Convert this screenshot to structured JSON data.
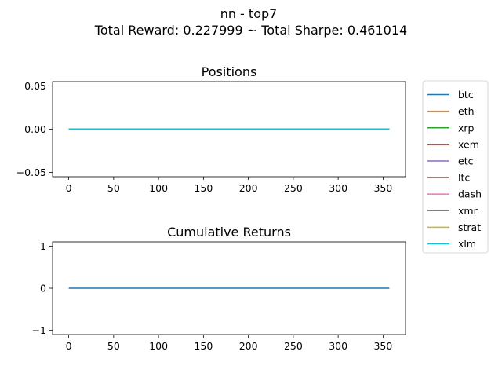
{
  "figure": {
    "suptitle_line1": "nn - top7",
    "suptitle_line2": "Total Reward: 0.227999 ~ Total Sharpe: 0.461014"
  },
  "chart_data": [
    {
      "type": "line",
      "title": "Positions",
      "xlabel": "",
      "ylabel": "",
      "xlim": [
        -18,
        375
      ],
      "ylim": [
        -0.055,
        0.055
      ],
      "x_ticks": [
        0,
        50,
        100,
        150,
        200,
        250,
        300,
        350
      ],
      "y_ticks": [
        -0.05,
        0.0,
        0.05
      ],
      "y_tick_labels": [
        "−0.05",
        "0.00",
        "0.05"
      ],
      "x_range": [
        0,
        357
      ],
      "series": [
        {
          "name": "btc",
          "color": "#1f77b4",
          "values": [
            0,
            0
          ]
        },
        {
          "name": "eth",
          "color": "#ff7f0e",
          "values": [
            0,
            0
          ]
        },
        {
          "name": "xrp",
          "color": "#2ca02c",
          "values": [
            0,
            0
          ]
        },
        {
          "name": "xem",
          "color": "#d62728",
          "values": [
            0,
            0
          ]
        },
        {
          "name": "etc",
          "color": "#9467bd",
          "values": [
            0,
            0
          ]
        },
        {
          "name": "ltc",
          "color": "#8c564b",
          "values": [
            0,
            0
          ]
        },
        {
          "name": "dash",
          "color": "#e377c2",
          "values": [
            0,
            0
          ]
        },
        {
          "name": "xmr",
          "color": "#7f7f7f",
          "values": [
            0,
            0
          ]
        },
        {
          "name": "strat",
          "color": "#bcbd22",
          "values": [
            0,
            0
          ]
        },
        {
          "name": "xlm",
          "color": "#17becf",
          "values": [
            0,
            0
          ]
        }
      ],
      "legend": "outside-right"
    },
    {
      "type": "line",
      "title": "Cumulative Returns",
      "xlabel": "",
      "ylabel": "",
      "xlim": [
        -18,
        375
      ],
      "ylim": [
        -1.1,
        1.1
      ],
      "x_ticks": [
        0,
        50,
        100,
        150,
        200,
        250,
        300,
        350
      ],
      "y_ticks": [
        -1,
        0,
        1
      ],
      "y_tick_labels": [
        "−1",
        "0",
        "1"
      ],
      "x_range": [
        0,
        357
      ],
      "series": [
        {
          "color": "#1f77b4",
          "values": [
            0,
            0
          ]
        }
      ]
    }
  ]
}
